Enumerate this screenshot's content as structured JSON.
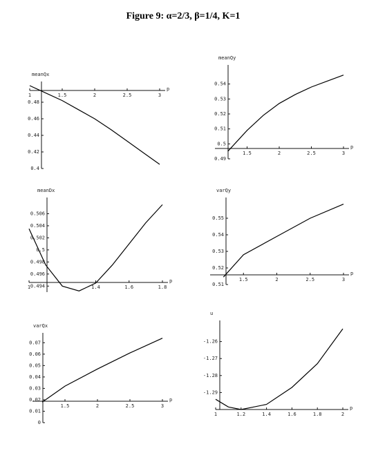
{
  "title": "Figure 9: α=2/3, β=1/4, K=1",
  "chart_data": [
    {
      "type": "line",
      "y_label": "meanQx",
      "x_label": "p",
      "x": [
        1,
        1.25,
        1.5,
        1.75,
        2,
        2.25,
        2.5,
        2.75,
        3
      ],
      "values": [
        0.5,
        0.491,
        0.482,
        0.471,
        0.46,
        0.447,
        0.433,
        0.419,
        0.405
      ],
      "xlim": [
        1,
        3
      ],
      "ylim": [
        0.4,
        0.5
      ],
      "xticks": [
        1,
        1.5,
        2,
        2.5,
        3
      ],
      "yticks": [
        0.4,
        0.42,
        0.44,
        0.46,
        0.48
      ]
    },
    {
      "type": "line",
      "y_label": "meanQy",
      "x_label": "p",
      "x": [
        1.2,
        1.5,
        1.75,
        2,
        2.25,
        2.5,
        2.75,
        3
      ],
      "values": [
        0.495,
        0.509,
        0.519,
        0.527,
        0.533,
        0.538,
        0.542,
        0.546
      ],
      "xlim": [
        1,
        3
      ],
      "ylim": [
        0.49,
        0.55
      ],
      "xticks": [
        1.5,
        2,
        2.5,
        3
      ],
      "yticks": [
        0.49,
        0.5,
        0.51,
        0.52,
        0.53,
        0.54
      ]
    },
    {
      "type": "line",
      "y_label": "meanDx",
      "x_label": "p",
      "x": [
        1,
        1.1,
        1.2,
        1.3,
        1.4,
        1.5,
        1.6,
        1.7,
        1.8
      ],
      "values": [
        0.5035,
        0.4975,
        0.494,
        0.4932,
        0.4945,
        0.4975,
        0.501,
        0.5045,
        0.5075
      ],
      "xlim": [
        1,
        1.8
      ],
      "ylim": [
        0.493,
        0.508
      ],
      "xticks": [
        1,
        1.4,
        1.6,
        1.8
      ],
      "yticks": [
        0.494,
        0.496,
        0.498,
        0.5,
        0.502,
        0.504,
        0.506
      ]
    },
    {
      "type": "line",
      "y_label": "varQy",
      "x_label": "p",
      "x": [
        1.2,
        1.5,
        2,
        2.5,
        3
      ],
      "values": [
        0.5145,
        0.528,
        0.539,
        0.55,
        0.5585
      ],
      "xlim": [
        1,
        3
      ],
      "ylim": [
        0.51,
        0.56
      ],
      "xticks": [
        1.5,
        2,
        2.5,
        3
      ],
      "yticks": [
        0.51,
        0.52,
        0.53,
        0.54,
        0.55
      ]
    },
    {
      "type": "line",
      "y_label": "varQx",
      "x_label": "p",
      "x": [
        1.15,
        1.5,
        2,
        2.5,
        3
      ],
      "values": [
        0.018,
        0.032,
        0.047,
        0.061,
        0.074
      ],
      "xlim": [
        1,
        3
      ],
      "ylim": [
        0,
        0.075
      ],
      "xticks": [
        1.5,
        2,
        2.5,
        3
      ],
      "yticks": [
        0,
        0.01,
        0.02,
        0.03,
        0.04,
        0.05,
        0.06,
        0.07
      ]
    },
    {
      "type": "line",
      "y_label": "u",
      "x_label": "p",
      "x": [
        1,
        1.1,
        1.2,
        1.3,
        1.4,
        1.6,
        1.8,
        2
      ],
      "values": [
        -1.294,
        -1.2985,
        -1.3,
        -1.2985,
        -1.297,
        -1.287,
        -1.273,
        -1.2525
      ],
      "xlim": [
        1,
        2
      ],
      "ylim": [
        -1.3,
        -1.25
      ],
      "xticks": [
        1,
        1.2,
        1.4,
        1.6,
        1.8,
        2
      ],
      "yticks": [
        -1.29,
        -1.28,
        -1.27,
        -1.26
      ]
    }
  ]
}
